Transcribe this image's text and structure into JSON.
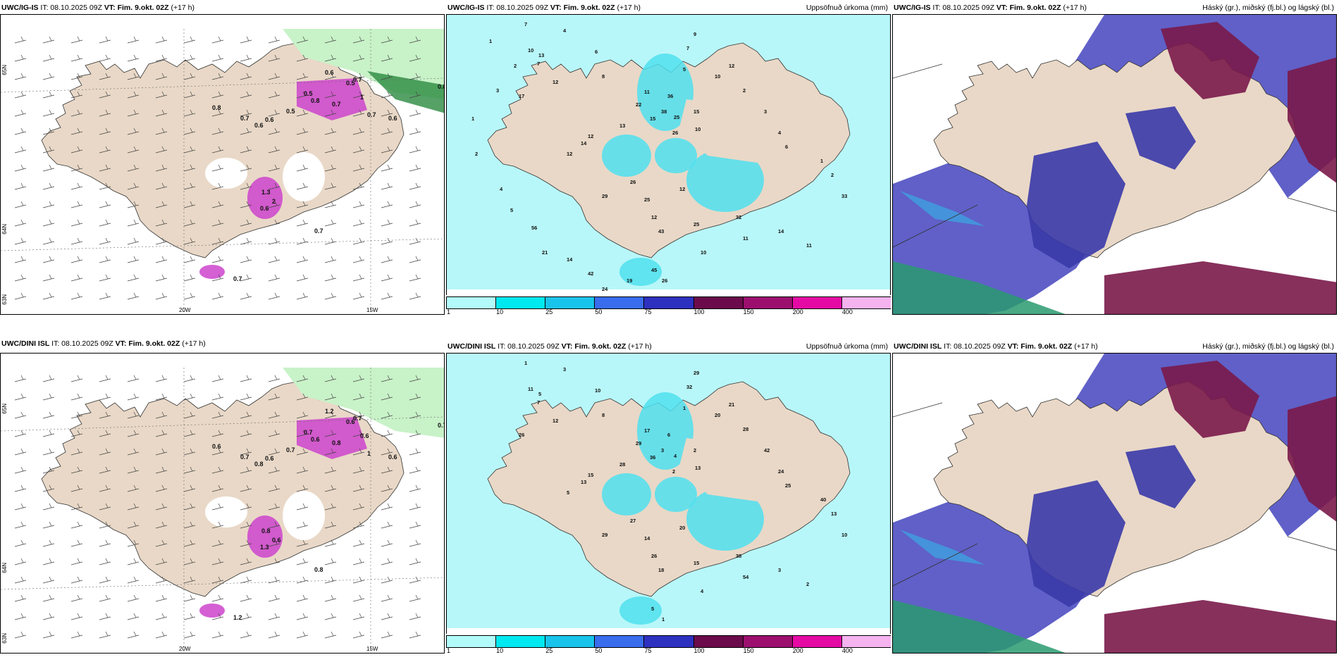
{
  "rows": [
    {
      "model": "UWC/IG-IS",
      "it": "IT: 08.10.2025 09Z",
      "vt_label": "VT:",
      "vt": "Fim. 9.okt. 02Z",
      "lead": "(+17 h)",
      "grid_labels": {
        "lon1": "20W",
        "lon2": "15W",
        "lat1": "65N",
        "lat2": "64N",
        "lat3": "63N"
      },
      "wind_labels": [
        "0.8",
        "0.7",
        "0.6",
        "0.6",
        "0.5",
        "0.5",
        "1",
        "0.7",
        "0.7",
        "0.8",
        "0.7",
        "0.6",
        "0.8",
        "0.5",
        "1.3",
        "2",
        "0.6",
        "0.7",
        "0.7",
        "0.6"
      ],
      "precip_title": "Uppsöfnuð úrkoma (mm)",
      "precip_values": [
        {
          "v": "7"
        },
        {
          "v": "4"
        },
        {
          "v": "6"
        },
        {
          "v": "10"
        },
        {
          "v": "13"
        },
        {
          "v": "7"
        },
        {
          "v": "12"
        },
        {
          "v": "17"
        },
        {
          "v": "8"
        },
        {
          "v": "11"
        },
        {
          "v": "22"
        },
        {
          "v": "15"
        },
        {
          "v": "13"
        },
        {
          "v": "12"
        },
        {
          "v": "14"
        },
        {
          "v": "12"
        },
        {
          "v": "36"
        },
        {
          "v": "38"
        },
        {
          "v": "25"
        },
        {
          "v": "26"
        },
        {
          "v": "10"
        },
        {
          "v": "15"
        },
        {
          "v": "5"
        },
        {
          "v": "7"
        },
        {
          "v": "9"
        },
        {
          "v": "10"
        },
        {
          "v": "12"
        },
        {
          "v": "2"
        },
        {
          "v": "3"
        },
        {
          "v": "4"
        },
        {
          "v": "6"
        },
        {
          "v": "1"
        },
        {
          "v": "2"
        },
        {
          "v": "33"
        },
        {
          "v": "29"
        },
        {
          "v": "26"
        },
        {
          "v": "25"
        },
        {
          "v": "12"
        },
        {
          "v": "12"
        },
        {
          "v": "43"
        },
        {
          "v": "25"
        },
        {
          "v": "32"
        },
        {
          "v": "11"
        },
        {
          "v": "14"
        },
        {
          "v": "11"
        },
        {
          "v": "10"
        },
        {
          "v": "45"
        },
        {
          "v": "26"
        },
        {
          "v": "19"
        },
        {
          "v": "24"
        },
        {
          "v": "42"
        },
        {
          "v": "14"
        },
        {
          "v": "21"
        },
        {
          "v": "56"
        },
        {
          "v": "5"
        },
        {
          "v": "4"
        },
        {
          "v": "2"
        },
        {
          "v": "1"
        },
        {
          "v": "3"
        },
        {
          "v": "2"
        },
        {
          "v": "1"
        }
      ],
      "levels_title": "Háský (gr.), miðský (fj.bl.) og lágský (bl.)"
    },
    {
      "model": "UWC/DINI ISL",
      "it": "IT: 08.10.2025 09Z",
      "vt_label": "VT:",
      "vt": "Fim. 9.okt. 02Z",
      "lead": "(+17 h)",
      "grid_labels": {
        "lon1": "20W",
        "lon2": "15W",
        "lat1": "65N",
        "lat2": "64N",
        "lat3": "63N"
      },
      "wind_labels": [
        "0.6",
        "0.7",
        "0.8",
        "0.6",
        "0.7",
        "0.6",
        "0.6",
        "1",
        "0.8",
        "0.6",
        "0.7",
        "1.2",
        "0.7",
        "0.7",
        "0.8",
        "0.6",
        "1.3",
        "0.8",
        "1.2",
        "0.6"
      ],
      "precip_title": "Uppsöfnuð úrkoma (mm)",
      "precip_values": [
        {
          "v": "1"
        },
        {
          "v": "3"
        },
        {
          "v": "10"
        },
        {
          "v": "11"
        },
        {
          "v": "5"
        },
        {
          "v": "7"
        },
        {
          "v": "12"
        },
        {
          "v": "26"
        },
        {
          "v": "8"
        },
        {
          "v": "17"
        },
        {
          "v": "29"
        },
        {
          "v": "36"
        },
        {
          "v": "28"
        },
        {
          "v": "15"
        },
        {
          "v": "13"
        },
        {
          "v": "5"
        },
        {
          "v": "6"
        },
        {
          "v": "3"
        },
        {
          "v": "4"
        },
        {
          "v": "2"
        },
        {
          "v": "13"
        },
        {
          "v": "2"
        },
        {
          "v": "1"
        },
        {
          "v": "32"
        },
        {
          "v": "29"
        },
        {
          "v": "20"
        },
        {
          "v": "21"
        },
        {
          "v": "28"
        },
        {
          "v": "42"
        },
        {
          "v": "24"
        },
        {
          "v": "25"
        },
        {
          "v": "40"
        },
        {
          "v": "13"
        },
        {
          "v": "10"
        },
        {
          "v": "29"
        },
        {
          "v": "27"
        },
        {
          "v": "14"
        },
        {
          "v": "20"
        },
        {
          "v": "26"
        },
        {
          "v": "18"
        },
        {
          "v": "15"
        },
        {
          "v": "38"
        },
        {
          "v": "54"
        },
        {
          "v": "3"
        },
        {
          "v": "2"
        },
        {
          "v": "4"
        },
        {
          "v": "5"
        },
        {
          "v": "1"
        }
      ],
      "levels_title": "Háský (gr.), miðský (fj.bl.) og lágský (bl.)"
    }
  ],
  "colorbar": {
    "ticks": [
      "1",
      "10",
      "25",
      "50",
      "75",
      "100",
      "150",
      "200",
      "400"
    ],
    "colors": [
      "#b3fbfb",
      "#00e8f0",
      "#19c4ec",
      "#3a6cee",
      "#2e30c0",
      "#6b0b4b",
      "#9c0f6e",
      "#e60aa5",
      "#f5b3f0"
    ]
  },
  "colors": {
    "land": "#e9d8c7",
    "precip_light": "#b8f7f9",
    "precip_mid": "#4fe0ee",
    "snow_pink": "#cc44cc",
    "hatch": "#333333",
    "green_light": "#c8f2c8",
    "green_dark": "#2a8a40",
    "cloud_low": "#6060c8",
    "cloud_mid": "#3a3aa8",
    "cloud_high": "#7a1a4a",
    "cloud_cyan": "#3fa0e0"
  }
}
